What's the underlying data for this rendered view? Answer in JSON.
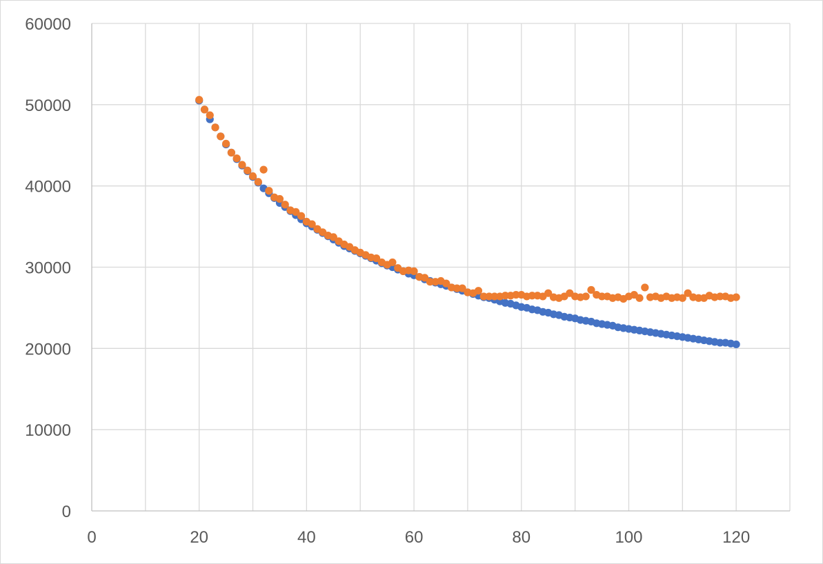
{
  "chart_data": {
    "type": "scatter",
    "title": "",
    "xlabel": "",
    "ylabel": "",
    "xlim": [
      0,
      130
    ],
    "ylim": [
      0,
      60000
    ],
    "x_ticks": [
      "0",
      "20",
      "40",
      "60",
      "80",
      "100",
      "120"
    ],
    "y_ticks": [
      "0",
      "10000",
      "20000",
      "30000",
      "40000",
      "50000",
      "60000"
    ],
    "grid": true,
    "legend": "none",
    "series": [
      {
        "color": "#4472c4",
        "x": [
          20,
          21,
          22,
          23,
          24,
          25,
          26,
          27,
          28,
          29,
          30,
          31,
          32,
          33,
          34,
          35,
          36,
          37,
          38,
          39,
          40,
          41,
          42,
          43,
          44,
          45,
          46,
          47,
          48,
          49,
          50,
          51,
          52,
          53,
          54,
          55,
          56,
          57,
          58,
          59,
          60,
          61,
          62,
          63,
          64,
          65,
          66,
          67,
          68,
          69,
          70,
          71,
          72,
          73,
          74,
          75,
          76,
          77,
          78,
          79,
          80,
          81,
          82,
          83,
          84,
          85,
          86,
          87,
          88,
          89,
          90,
          91,
          92,
          93,
          94,
          95,
          96,
          97,
          98,
          99,
          100,
          101,
          102,
          103,
          104,
          105,
          106,
          107,
          108,
          109,
          110,
          111,
          112,
          113,
          114,
          115,
          116,
          117,
          118,
          119,
          120
        ],
        "y": [
          50500,
          49400,
          48200,
          47200,
          46100,
          45100,
          44100,
          43300,
          42500,
          41800,
          41100,
          40400,
          39700,
          39100,
          38500,
          37900,
          37400,
          36900,
          36400,
          35900,
          35400,
          35000,
          34600,
          34200,
          33800,
          33400,
          33000,
          32600,
          32300,
          32000,
          31700,
          31400,
          31100,
          30800,
          30500,
          30200,
          30000,
          29700,
          29500,
          29200,
          29000,
          28800,
          28500,
          28300,
          28100,
          27900,
          27700,
          27500,
          27300,
          27100,
          26900,
          26700,
          26500,
          26300,
          26200,
          26000,
          25800,
          25600,
          25500,
          25300,
          25100,
          25000,
          24800,
          24700,
          24500,
          24400,
          24200,
          24100,
          23900,
          23800,
          23700,
          23500,
          23400,
          23300,
          23100,
          23000,
          22900,
          22800,
          22600,
          22500,
          22400,
          22300,
          22200,
          22100,
          22000,
          21900,
          21800,
          21700,
          21600,
          21500,
          21400,
          21300,
          21200,
          21100,
          21000,
          20900,
          20800,
          20700,
          20700,
          20600,
          20500
        ]
      },
      {
        "color": "#ed7d31",
        "x": [
          20,
          21,
          22,
          23,
          24,
          25,
          26,
          27,
          28,
          29,
          30,
          31,
          32,
          33,
          34,
          35,
          36,
          37,
          38,
          39,
          40,
          41,
          42,
          43,
          44,
          45,
          46,
          47,
          48,
          49,
          50,
          51,
          52,
          53,
          54,
          55,
          56,
          57,
          58,
          59,
          60,
          61,
          62,
          63,
          64,
          65,
          66,
          67,
          68,
          69,
          70,
          71,
          72,
          73,
          74,
          75,
          76,
          77,
          78,
          79,
          80,
          81,
          82,
          83,
          84,
          85,
          86,
          87,
          88,
          89,
          90,
          91,
          92,
          93,
          94,
          95,
          96,
          97,
          98,
          99,
          100,
          101,
          102,
          103,
          104,
          105,
          106,
          107,
          108,
          109,
          110,
          111,
          112,
          113,
          114,
          115,
          116,
          117,
          118,
          119,
          120
        ],
        "y": [
          50600,
          49400,
          48700,
          47200,
          46100,
          45200,
          44100,
          43400,
          42600,
          41900,
          41200,
          40500,
          42000,
          39400,
          38600,
          38400,
          37700,
          37000,
          36800,
          36300,
          35600,
          35300,
          34700,
          34300,
          33900,
          33700,
          33200,
          32800,
          32500,
          32100,
          31800,
          31500,
          31200,
          31100,
          30600,
          30300,
          30600,
          29900,
          29500,
          29600,
          29500,
          28800,
          28700,
          28200,
          28200,
          28300,
          28000,
          27500,
          27400,
          27400,
          26900,
          26800,
          27100,
          26400,
          26400,
          26400,
          26400,
          26500,
          26500,
          26600,
          26600,
          26400,
          26500,
          26500,
          26400,
          26800,
          26300,
          26200,
          26400,
          26800,
          26400,
          26300,
          26400,
          27200,
          26600,
          26400,
          26400,
          26200,
          26300,
          26100,
          26400,
          26600,
          26200,
          27500,
          26300,
          26400,
          26200,
          26400,
          26200,
          26300,
          26200,
          26800,
          26300,
          26200,
          26200,
          26500,
          26300,
          26400,
          26400,
          26200,
          26300
        ]
      }
    ]
  }
}
